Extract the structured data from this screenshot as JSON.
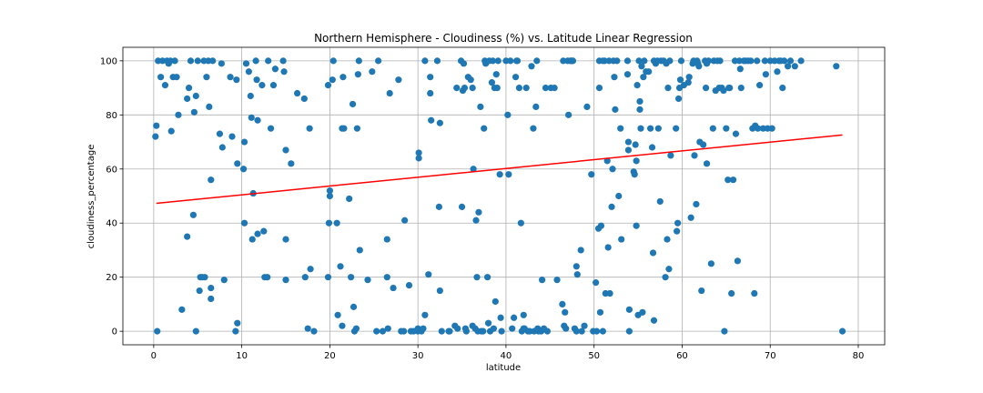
{
  "chart_data": {
    "type": "scatter",
    "title": "Northern Hemisphere - Cloudiness (%) vs. Latitude Linear Regression",
    "xlabel": "latitude",
    "ylabel": "cloudiness_percentage",
    "xlim": [
      -3.5,
      83
    ],
    "ylim": [
      -5,
      105
    ],
    "xticks": [
      0,
      10,
      20,
      30,
      40,
      50,
      60,
      70,
      80
    ],
    "yticks": [
      0,
      20,
      40,
      60,
      80,
      100
    ],
    "grid": true,
    "point_color": "#1f77b4",
    "regression_color": "#ff0000",
    "regression": {
      "x": [
        0.3,
        78.2
      ],
      "y": [
        47.3,
        72.6
      ]
    },
    "points": [
      [
        0.2,
        72
      ],
      [
        0.3,
        76
      ],
      [
        0.4,
        0
      ],
      [
        0.5,
        100
      ],
      [
        0.8,
        94
      ],
      [
        1,
        100
      ],
      [
        1.3,
        91
      ],
      [
        1.5,
        100
      ],
      [
        1.7,
        99
      ],
      [
        1.9,
        100
      ],
      [
        2,
        74
      ],
      [
        2.2,
        94
      ],
      [
        2.4,
        100
      ],
      [
        2.6,
        94
      ],
      [
        2.8,
        80
      ],
      [
        3.2,
        8
      ],
      [
        3.8,
        86
      ],
      [
        3.8,
        35
      ],
      [
        4,
        90
      ],
      [
        4.2,
        100
      ],
      [
        4.5,
        43
      ],
      [
        4.6,
        81
      ],
      [
        4.8,
        0
      ],
      [
        4.8,
        87
      ],
      [
        5,
        100
      ],
      [
        5.2,
        15
      ],
      [
        5.3,
        20
      ],
      [
        5.5,
        20
      ],
      [
        5.7,
        100
      ],
      [
        5.8,
        20
      ],
      [
        6,
        94
      ],
      [
        6.2,
        100
      ],
      [
        6.3,
        83
      ],
      [
        6.5,
        16
      ],
      [
        6.5,
        12
      ],
      [
        6.5,
        56
      ],
      [
        6.7,
        100
      ],
      [
        7.5,
        73
      ],
      [
        7.7,
        99
      ],
      [
        7.8,
        68
      ],
      [
        8,
        19
      ],
      [
        8.7,
        94
      ],
      [
        8.9,
        72
      ],
      [
        9.3,
        0
      ],
      [
        9.4,
        93
      ],
      [
        9.5,
        3
      ],
      [
        9.5,
        62
      ],
      [
        10.2,
        60
      ],
      [
        10.3,
        40
      ],
      [
        10.3,
        70
      ],
      [
        10.5,
        99
      ],
      [
        10.8,
        96
      ],
      [
        11,
        87
      ],
      [
        11.1,
        79
      ],
      [
        11.2,
        34
      ],
      [
        11.3,
        51
      ],
      [
        11.6,
        100
      ],
      [
        11.7,
        93
      ],
      [
        11.8,
        78
      ],
      [
        11.8,
        36
      ],
      [
        12.3,
        91
      ],
      [
        12.5,
        37
      ],
      [
        12.6,
        20
      ],
      [
        12.9,
        20
      ],
      [
        13,
        100
      ],
      [
        13.3,
        75
      ],
      [
        13.6,
        91
      ],
      [
        13.8,
        97
      ],
      [
        14.7,
        100
      ],
      [
        14.8,
        96
      ],
      [
        15,
        67
      ],
      [
        15,
        34
      ],
      [
        15,
        19
      ],
      [
        15.6,
        62
      ],
      [
        16.3,
        88
      ],
      [
        17.1,
        86
      ],
      [
        17.2,
        20
      ],
      [
        17.5,
        1
      ],
      [
        17.7,
        75
      ],
      [
        17.8,
        23
      ],
      [
        18.2,
        0
      ],
      [
        19.8,
        20
      ],
      [
        19.8,
        91
      ],
      [
        19.9,
        40
      ],
      [
        20,
        52
      ],
      [
        20,
        50
      ],
      [
        20.3,
        93
      ],
      [
        20.4,
        100
      ],
      [
        20.8,
        40
      ],
      [
        20.9,
        6
      ],
      [
        21.2,
        24
      ],
      [
        21.4,
        75
      ],
      [
        21.4,
        2
      ],
      [
        21.5,
        94
      ],
      [
        21.6,
        75
      ],
      [
        22.2,
        49
      ],
      [
        22.4,
        20
      ],
      [
        22.6,
        84
      ],
      [
        22.7,
        9
      ],
      [
        22.8,
        0
      ],
      [
        23,
        1
      ],
      [
        23.1,
        75
      ],
      [
        23.2,
        95
      ],
      [
        23.3,
        100
      ],
      [
        23.4,
        30
      ],
      [
        24.3,
        19
      ],
      [
        24.8,
        96
      ],
      [
        25.3,
        0
      ],
      [
        25.5,
        100
      ],
      [
        26,
        0
      ],
      [
        26.5,
        20
      ],
      [
        26.5,
        34
      ],
      [
        26.6,
        1
      ],
      [
        26.8,
        88
      ],
      [
        27.2,
        16
      ],
      [
        27.8,
        93
      ],
      [
        28.1,
        0
      ],
      [
        28.4,
        0
      ],
      [
        28.5,
        41
      ],
      [
        29,
        17
      ],
      [
        29.2,
        0
      ],
      [
        29.5,
        0
      ],
      [
        30,
        0
      ],
      [
        30,
        1
      ],
      [
        30.1,
        64
      ],
      [
        30.1,
        66
      ],
      [
        30.4,
        0
      ],
      [
        30.6,
        1
      ],
      [
        30.8,
        6
      ],
      [
        30.8,
        100
      ],
      [
        31.2,
        21
      ],
      [
        31.4,
        88
      ],
      [
        31.4,
        94
      ],
      [
        31.5,
        78
      ],
      [
        32.2,
        100
      ],
      [
        32.4,
        46
      ],
      [
        32.5,
        77
      ],
      [
        32.5,
        15
      ],
      [
        32.7,
        0
      ],
      [
        33.5,
        0
      ],
      [
        33.6,
        0
      ],
      [
        34.2,
        2
      ],
      [
        34.4,
        90
      ],
      [
        34.5,
        1
      ],
      [
        34.9,
        100
      ],
      [
        35,
        46
      ],
      [
        35.1,
        89
      ],
      [
        35.2,
        99
      ],
      [
        35.3,
        90
      ],
      [
        35.4,
        1
      ],
      [
        35.5,
        0
      ],
      [
        35.7,
        94
      ],
      [
        36,
        93
      ],
      [
        36.2,
        2
      ],
      [
        36.2,
        90
      ],
      [
        36.3,
        60
      ],
      [
        36.5,
        1
      ],
      [
        36.6,
        41
      ],
      [
        36.7,
        20
      ],
      [
        36.8,
        0
      ],
      [
        36.9,
        44
      ],
      [
        37.1,
        83
      ],
      [
        37.2,
        0
      ],
      [
        37.4,
        0
      ],
      [
        37.5,
        75
      ],
      [
        37.6,
        100
      ],
      [
        37.7,
        99
      ],
      [
        37.9,
        20
      ],
      [
        38,
        3
      ],
      [
        38.1,
        100
      ],
      [
        38.2,
        0
      ],
      [
        38.4,
        92
      ],
      [
        38.5,
        100
      ],
      [
        38.6,
        1
      ],
      [
        38.7,
        90
      ],
      [
        38.8,
        11
      ],
      [
        38.9,
        95
      ],
      [
        39,
        90
      ],
      [
        39.1,
        100
      ],
      [
        39.3,
        58
      ],
      [
        39.4,
        5
      ],
      [
        39.5,
        0
      ],
      [
        40,
        100
      ],
      [
        40.2,
        80
      ],
      [
        40.3,
        58
      ],
      [
        40.5,
        100
      ],
      [
        40.7,
        1
      ],
      [
        40.9,
        5
      ],
      [
        41.1,
        94
      ],
      [
        41.2,
        100
      ],
      [
        41.3,
        100
      ],
      [
        41.5,
        90
      ],
      [
        41.7,
        40
      ],
      [
        41.8,
        0
      ],
      [
        42,
        1
      ],
      [
        42,
        6
      ],
      [
        42.1,
        1
      ],
      [
        42.3,
        90
      ],
      [
        42.5,
        0
      ],
      [
        42.7,
        0
      ],
      [
        42.9,
        98
      ],
      [
        43.1,
        75
      ],
      [
        43.2,
        0
      ],
      [
        43.4,
        83
      ],
      [
        43.5,
        100
      ],
      [
        43.6,
        1
      ],
      [
        43.7,
        0
      ],
      [
        44,
        0
      ],
      [
        44.1,
        19
      ],
      [
        44.3,
        1
      ],
      [
        44.5,
        90
      ],
      [
        44.7,
        0
      ],
      [
        45.1,
        90
      ],
      [
        45.5,
        90
      ],
      [
        45.8,
        19
      ],
      [
        46.4,
        10
      ],
      [
        46.5,
        100
      ],
      [
        46.6,
        2
      ],
      [
        46.7,
        7
      ],
      [
        46.8,
        1
      ],
      [
        47,
        100
      ],
      [
        47.1,
        80
      ],
      [
        47.3,
        100
      ],
      [
        47.4,
        100
      ],
      [
        47.5,
        100
      ],
      [
        47.6,
        100
      ],
      [
        47.8,
        1
      ],
      [
        48,
        0
      ],
      [
        48,
        24
      ],
      [
        48.1,
        21
      ],
      [
        48.5,
        30
      ],
      [
        48.6,
        0
      ],
      [
        48.9,
        2
      ],
      [
        49.2,
        83
      ],
      [
        49.7,
        58
      ],
      [
        49.9,
        0
      ],
      [
        50.2,
        18
      ],
      [
        50.3,
        0
      ],
      [
        50.5,
        38
      ],
      [
        50.6,
        90
      ],
      [
        50.6,
        100
      ],
      [
        50.7,
        7
      ],
      [
        50.8,
        39
      ],
      [
        51,
        100
      ],
      [
        51,
        0
      ],
      [
        51.2,
        100
      ],
      [
        51.3,
        14
      ],
      [
        51.5,
        63
      ],
      [
        51.6,
        31
      ],
      [
        51.7,
        100
      ],
      [
        51.8,
        14
      ],
      [
        52,
        46
      ],
      [
        52.1,
        60
      ],
      [
        52.2,
        100
      ],
      [
        52.3,
        94
      ],
      [
        52.4,
        82
      ],
      [
        52.6,
        100
      ],
      [
        52.8,
        50
      ],
      [
        53,
        75
      ],
      [
        53.1,
        34
      ],
      [
        53.8,
        95
      ],
      [
        53.8,
        100
      ],
      [
        53.9,
        70
      ],
      [
        53.9,
        67
      ],
      [
        54,
        0
      ],
      [
        54,
        8
      ],
      [
        54.5,
        59
      ],
      [
        54.6,
        58
      ],
      [
        54.7,
        69
      ],
      [
        54.8,
        39
      ],
      [
        54.8,
        63
      ],
      [
        54.9,
        91
      ],
      [
        55,
        6
      ],
      [
        55.1,
        100
      ],
      [
        55.2,
        82
      ],
      [
        55.2,
        85
      ],
      [
        55.3,
        75
      ],
      [
        55.4,
        98
      ],
      [
        55.5,
        7
      ],
      [
        55.6,
        94
      ],
      [
        55.7,
        100
      ],
      [
        55.9,
        96
      ],
      [
        56.2,
        96
      ],
      [
        56.4,
        75
      ],
      [
        56.6,
        68
      ],
      [
        56.7,
        29
      ],
      [
        56.8,
        4
      ],
      [
        56.8,
        100
      ],
      [
        57,
        99
      ],
      [
        57.2,
        100
      ],
      [
        57.3,
        75
      ],
      [
        57.5,
        48
      ],
      [
        57.6,
        100
      ],
      [
        57.9,
        100
      ],
      [
        58.1,
        20
      ],
      [
        58.2,
        99
      ],
      [
        58.3,
        34
      ],
      [
        58.4,
        90
      ],
      [
        58.5,
        23
      ],
      [
        58.6,
        100
      ],
      [
        58.7,
        65
      ],
      [
        59.3,
        75
      ],
      [
        59.4,
        37
      ],
      [
        59.5,
        40
      ],
      [
        59.6,
        86
      ],
      [
        59.7,
        90
      ],
      [
        59.8,
        93
      ],
      [
        59.9,
        100
      ],
      [
        60.2,
        91
      ],
      [
        60.7,
        92
      ],
      [
        60.8,
        94
      ],
      [
        61,
        42
      ],
      [
        61.2,
        99
      ],
      [
        61.3,
        100
      ],
      [
        61.4,
        65
      ],
      [
        61.6,
        47
      ],
      [
        61.7,
        100
      ],
      [
        61.8,
        99
      ],
      [
        61.9,
        98
      ],
      [
        62,
        70
      ],
      [
        62.2,
        15
      ],
      [
        62.4,
        69
      ],
      [
        62.6,
        100
      ],
      [
        62.7,
        90
      ],
      [
        62.8,
        62
      ],
      [
        62.8,
        99
      ],
      [
        63,
        100
      ],
      [
        63.3,
        25
      ],
      [
        63.5,
        75
      ],
      [
        63.6,
        100
      ],
      [
        63.8,
        89
      ],
      [
        64,
        100
      ],
      [
        64.2,
        90
      ],
      [
        64.3,
        100
      ],
      [
        64.5,
        90
      ],
      [
        64.7,
        89
      ],
      [
        64.8,
        0
      ],
      [
        65,
        75
      ],
      [
        65.2,
        56
      ],
      [
        65.3,
        90
      ],
      [
        65.4,
        90
      ],
      [
        65.6,
        14
      ],
      [
        65.8,
        56
      ],
      [
        66,
        100
      ],
      [
        66.1,
        73
      ],
      [
        66.3,
        26
      ],
      [
        66.5,
        100
      ],
      [
        66.6,
        97
      ],
      [
        66.7,
        90
      ],
      [
        67,
        100
      ],
      [
        67.2,
        100
      ],
      [
        67.5,
        100
      ],
      [
        67.8,
        100
      ],
      [
        68,
        75
      ],
      [
        68.2,
        14
      ],
      [
        68.3,
        76
      ],
      [
        68.5,
        100
      ],
      [
        68.6,
        75
      ],
      [
        68.8,
        91
      ],
      [
        69.2,
        75
      ],
      [
        69.4,
        100
      ],
      [
        69.5,
        95
      ],
      [
        69.7,
        75
      ],
      [
        70,
        100
      ],
      [
        70.2,
        75
      ],
      [
        70.5,
        100
      ],
      [
        70.8,
        96
      ],
      [
        71,
        100
      ],
      [
        71.2,
        100
      ],
      [
        71.4,
        90
      ],
      [
        71.6,
        100
      ],
      [
        72,
        98
      ],
      [
        72.3,
        100
      ],
      [
        72.8,
        98
      ],
      [
        73.5,
        100
      ],
      [
        77.5,
        98
      ],
      [
        78.2,
        0
      ]
    ]
  }
}
